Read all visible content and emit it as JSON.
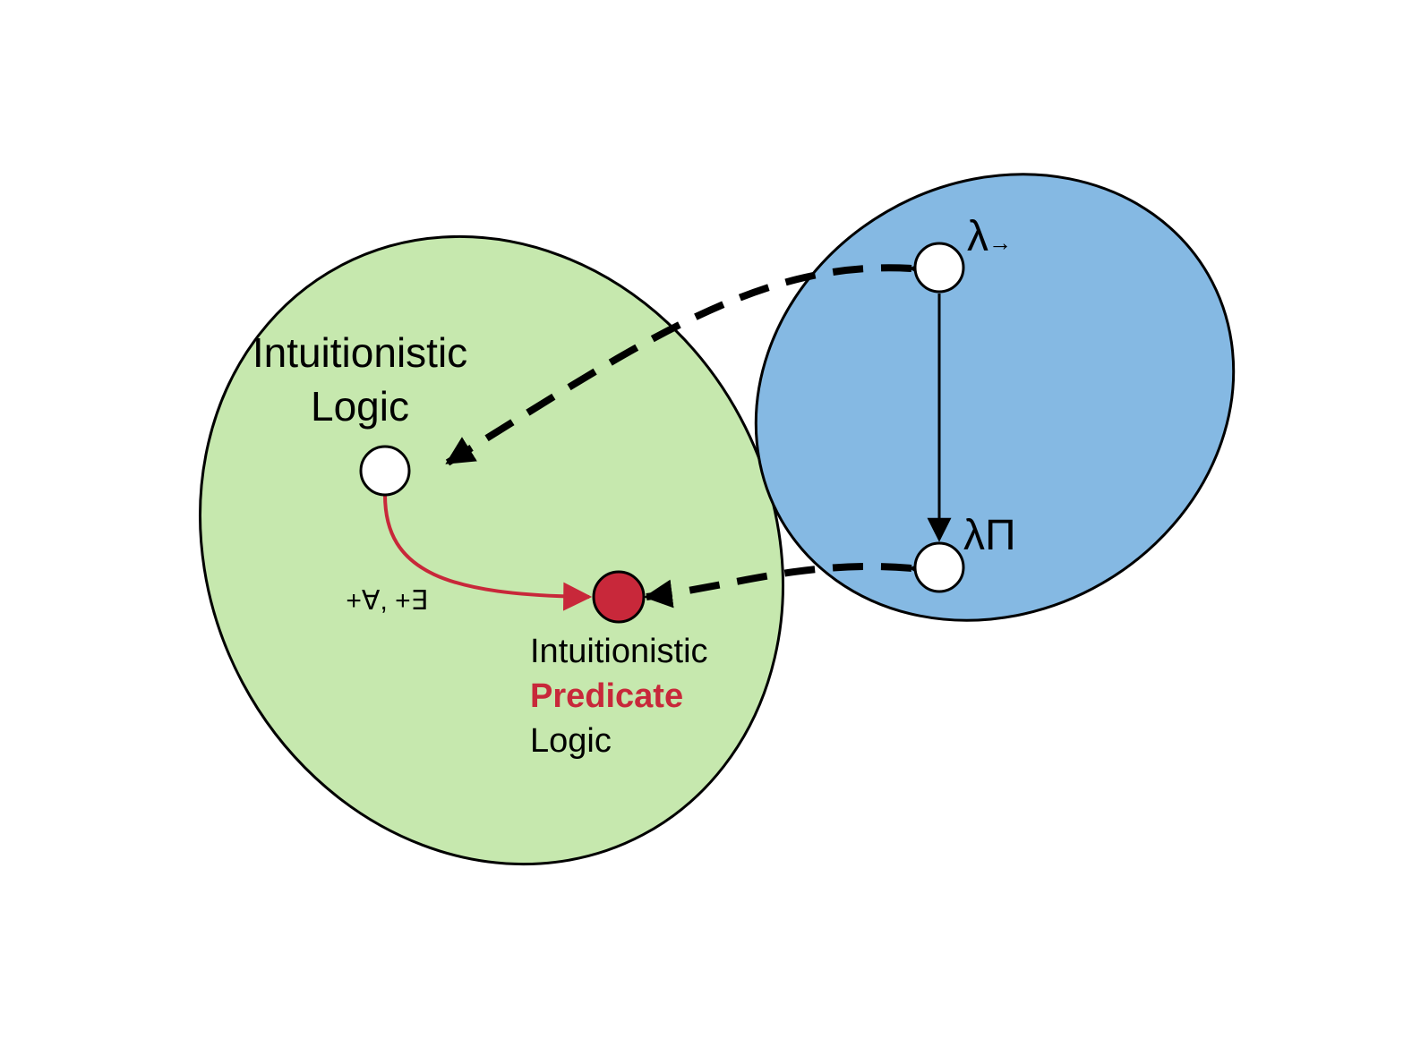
{
  "colors": {
    "green_region": "#c6e8ae",
    "blue_region": "#85b9e3",
    "outline": "#000000",
    "accent": "#c8283a",
    "node_fill": "#ffffff"
  },
  "labels": {
    "intuitionistic_logic_line1": "Intuitionistic",
    "intuitionistic_logic_line2": "Logic",
    "quantifier_edge": "+∀, +∃",
    "predicate_line1": "Intuitionistic",
    "predicate_line2": "Predicate",
    "predicate_line3": "Logic",
    "lambda_arrow_base": "λ",
    "lambda_arrow_sub": "→",
    "lambda_pi": "λΠ"
  }
}
